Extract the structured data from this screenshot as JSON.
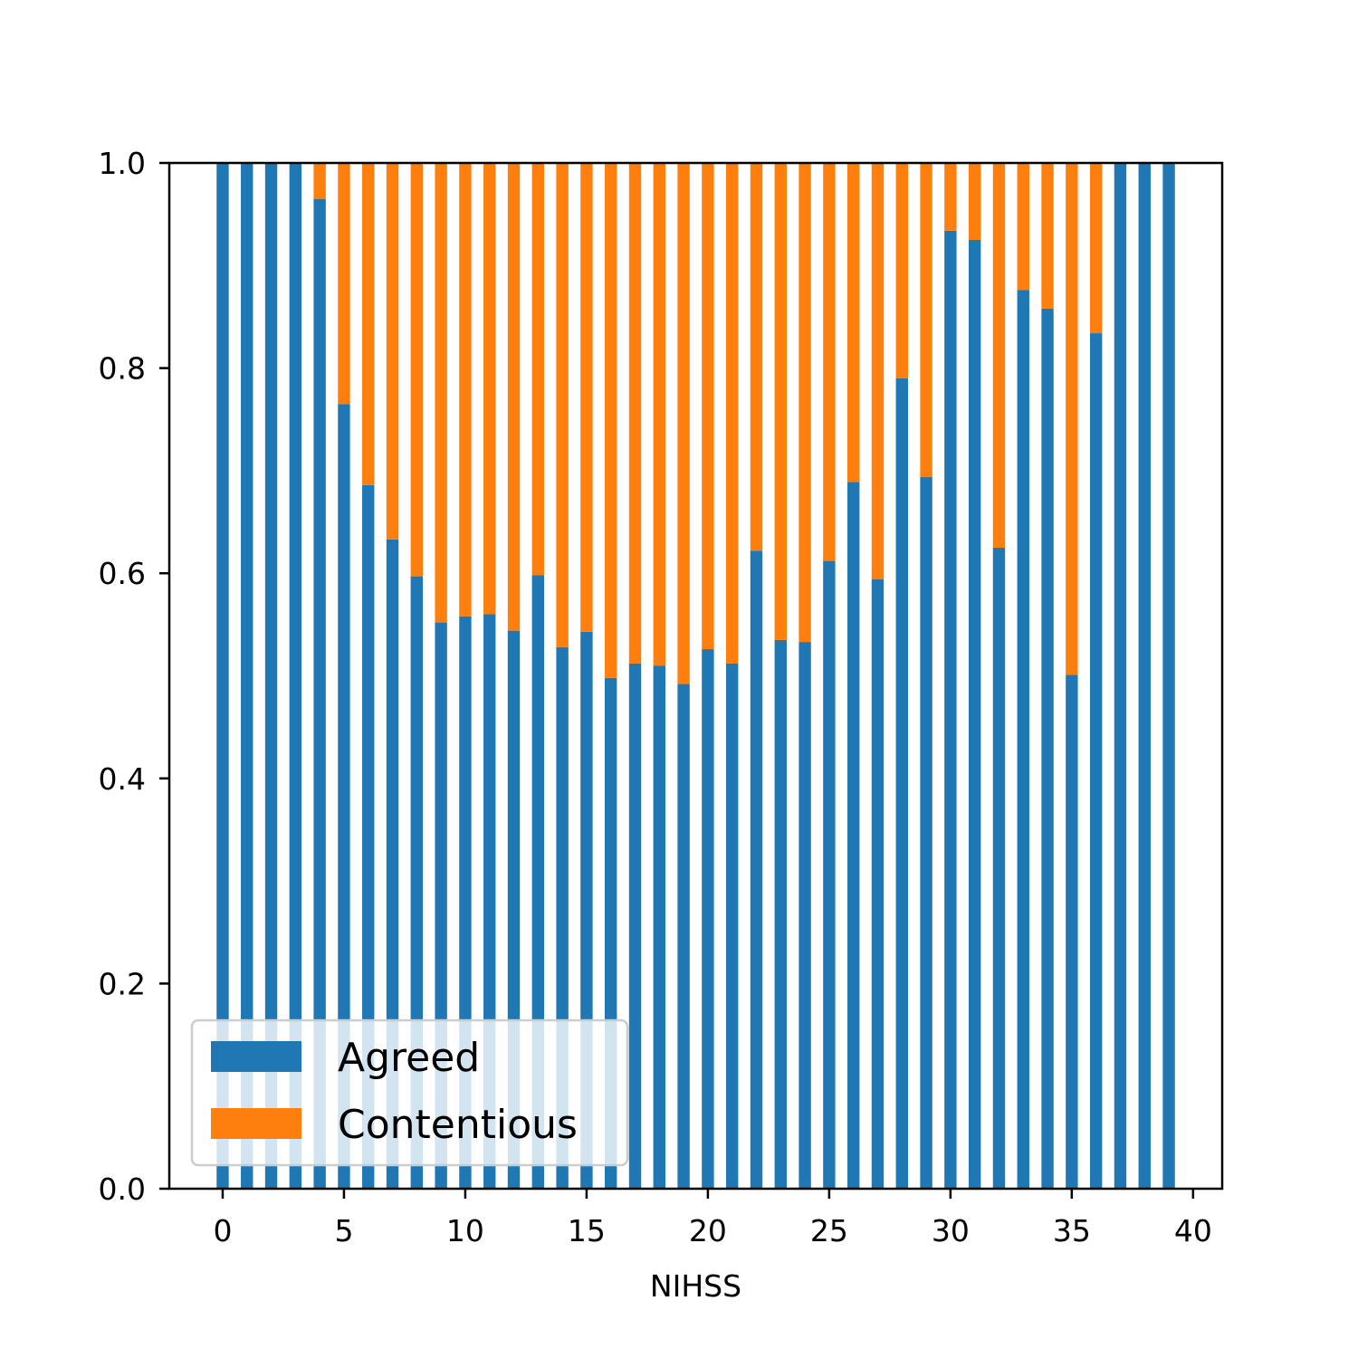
{
  "chart_data": {
    "type": "bar",
    "stacked": true,
    "xlabel": "NIHSS",
    "ylabel": "",
    "title": "",
    "xlim": [
      -2.2,
      41.2
    ],
    "ylim": [
      0.0,
      1.0
    ],
    "xticks": [
      0,
      5,
      10,
      15,
      20,
      25,
      30,
      35,
      40
    ],
    "yticks": [
      0.0,
      0.2,
      0.4,
      0.6,
      0.8,
      1.0
    ],
    "ytick_labels": [
      "0.0",
      "0.2",
      "0.4",
      "0.6",
      "0.8",
      "1.0"
    ],
    "grid": false,
    "legend_position": "lower-left",
    "x": [
      0,
      1,
      2,
      3,
      4,
      5,
      6,
      7,
      8,
      9,
      10,
      11,
      12,
      13,
      14,
      15,
      16,
      17,
      18,
      19,
      20,
      21,
      22,
      23,
      24,
      25,
      26,
      27,
      28,
      29,
      30,
      31,
      32,
      33,
      34,
      35,
      36,
      37,
      38,
      39
    ],
    "series": [
      {
        "name": "Agreed",
        "color": "#1f77b4",
        "values": [
          1.0,
          1.0,
          1.0,
          1.0,
          0.965,
          0.765,
          0.686,
          0.633,
          0.597,
          0.552,
          0.558,
          0.56,
          0.544,
          0.598,
          0.528,
          0.543,
          0.498,
          0.512,
          0.51,
          0.492,
          0.526,
          0.512,
          0.622,
          0.535,
          0.533,
          0.612,
          0.689,
          0.594,
          0.79,
          0.694,
          0.934,
          0.925,
          0.625,
          0.876,
          0.858,
          0.501,
          0.834,
          1.0,
          1.0,
          1.0
        ]
      },
      {
        "name": "Contentious",
        "color": "#ff7f0e",
        "values": [
          0.0,
          0.0,
          0.0,
          0.0,
          0.035,
          0.235,
          0.314,
          0.367,
          0.403,
          0.448,
          0.442,
          0.44,
          0.456,
          0.402,
          0.472,
          0.457,
          0.502,
          0.488,
          0.49,
          0.508,
          0.474,
          0.488,
          0.378,
          0.465,
          0.467,
          0.388,
          0.311,
          0.406,
          0.21,
          0.306,
          0.066,
          0.075,
          0.375,
          0.124,
          0.142,
          0.499,
          0.166,
          0.0,
          0.0,
          0.0
        ]
      }
    ]
  }
}
